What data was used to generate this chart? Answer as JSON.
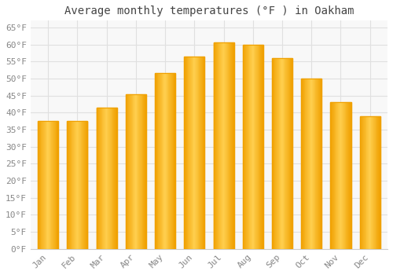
{
  "title": "Average monthly temperatures (°F ) in Oakham",
  "months": [
    "Jan",
    "Feb",
    "Mar",
    "Apr",
    "May",
    "Jun",
    "Jul",
    "Aug",
    "Sep",
    "Oct",
    "Nov",
    "Dec"
  ],
  "values": [
    37.5,
    37.5,
    41.5,
    45.5,
    51.5,
    56.5,
    60.5,
    60.0,
    56.0,
    50.0,
    43.0,
    39.0
  ],
  "bar_color_center": "#FFD050",
  "bar_color_edge": "#F0A000",
  "ylim": [
    0,
    67
  ],
  "yticks": [
    0,
    5,
    10,
    15,
    20,
    25,
    30,
    35,
    40,
    45,
    50,
    55,
    60,
    65
  ],
  "ytick_labels": [
    "0°F",
    "5°F",
    "10°F",
    "15°F",
    "20°F",
    "25°F",
    "30°F",
    "35°F",
    "40°F",
    "45°F",
    "50°F",
    "55°F",
    "60°F",
    "65°F"
  ],
  "background_color": "#ffffff",
  "plot_bg_color": "#f8f8f8",
  "grid_color": "#e0e0e0",
  "title_fontsize": 10,
  "tick_fontsize": 8,
  "font_family": "monospace",
  "tick_color": "#888888",
  "title_color": "#444444"
}
